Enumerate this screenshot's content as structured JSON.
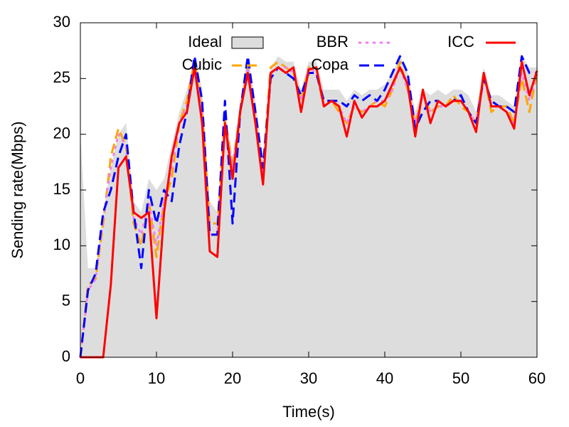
{
  "chart_data": {
    "type": "line",
    "xlabel": "Time(s)",
    "ylabel": "Sending rate(Mbps)",
    "xlim": [
      0,
      60
    ],
    "ylim": [
      0,
      30
    ],
    "xticks": [
      0,
      10,
      20,
      30,
      40,
      50,
      60
    ],
    "yticks": [
      0,
      5,
      10,
      15,
      20,
      25,
      30
    ],
    "x": [
      0,
      1,
      2,
      3,
      4,
      5,
      6,
      7,
      8,
      9,
      10,
      11,
      12,
      13,
      14,
      15,
      16,
      17,
      18,
      19,
      20,
      21,
      22,
      23,
      24,
      25,
      26,
      27,
      28,
      29,
      30,
      31,
      32,
      33,
      34,
      35,
      36,
      37,
      38,
      39,
      40,
      41,
      42,
      43,
      44,
      45,
      46,
      47,
      48,
      49,
      50,
      51,
      52,
      53,
      54,
      55,
      56,
      57,
      58,
      59,
      60
    ],
    "series": [
      {
        "name": "Ideal",
        "color": "#dddddd",
        "style": "area",
        "values": [
          20,
          8,
          8,
          13,
          17,
          20,
          21,
          14,
          13,
          16,
          15,
          16,
          19,
          22,
          24,
          27,
          24,
          14,
          13,
          22,
          18,
          23,
          27,
          23,
          18,
          26,
          27,
          26.5,
          26.5,
          24,
          26.5,
          26.5,
          24,
          24,
          24,
          23,
          24,
          23.5,
          24,
          24,
          24.5,
          25.5,
          27,
          25.5,
          22,
          24,
          23.5,
          24,
          23.5,
          24,
          24,
          23.5,
          22,
          26,
          23.5,
          23.5,
          23,
          22.5,
          27,
          26,
          26
        ]
      },
      {
        "name": "Cubic",
        "color": "#ffa500",
        "style": "dashed",
        "values": [
          0,
          6.5,
          7,
          12,
          18,
          20.5,
          19,
          12,
          10,
          14,
          9,
          14,
          16,
          21,
          23,
          26.5,
          22,
          12,
          12,
          21.5,
          17,
          22,
          26,
          21,
          17,
          26,
          26.5,
          26,
          25.5,
          23,
          26,
          25.5,
          22.5,
          23,
          22,
          21,
          22.5,
          22,
          22.5,
          23,
          22.5,
          24,
          26.5,
          24,
          21,
          23.5,
          22,
          22.5,
          22.5,
          23.5,
          22.5,
          22,
          21,
          25.5,
          22,
          22.5,
          22.5,
          21,
          25,
          22,
          25.5
        ]
      },
      {
        "name": "BBR",
        "color": "#ee82ee",
        "style": "dotted",
        "values": [
          0,
          6,
          7,
          12.5,
          17,
          20,
          19,
          12.5,
          11,
          14,
          10,
          14,
          17,
          21,
          22.5,
          26,
          22,
          11,
          11,
          21,
          17,
          22,
          26,
          21.5,
          16.5,
          25.5,
          26,
          26,
          25.5,
          23,
          26,
          25.5,
          22.5,
          23,
          22.5,
          21,
          22.5,
          22,
          22.5,
          23,
          23,
          24,
          26,
          24,
          21,
          23.5,
          22,
          22.5,
          22.5,
          23,
          23,
          22,
          21,
          25.5,
          22.5,
          22.5,
          22,
          21,
          25.5,
          23,
          25.5
        ]
      },
      {
        "name": "Copa",
        "color": "#0000ff",
        "style": "dashed",
        "values": [
          0,
          6,
          7.5,
          13,
          15,
          18,
          20,
          13,
          8,
          15,
          12,
          15,
          14,
          19,
          22,
          27,
          23,
          11,
          11,
          23,
          12,
          22,
          27,
          22,
          17,
          25,
          26,
          25.5,
          25,
          23.5,
          25.5,
          25.5,
          23,
          23,
          23,
          22.5,
          23.5,
          23,
          23.5,
          23,
          24,
          25.5,
          27,
          25.5,
          20.5,
          22,
          23,
          23,
          22.5,
          23,
          23.5,
          22,
          21,
          25,
          23,
          22.5,
          22.5,
          22,
          27,
          25.5,
          25.5
        ]
      },
      {
        "name": "ICC",
        "color": "#ff0000",
        "style": "solid",
        "values": [
          0,
          0,
          0,
          0,
          6.5,
          17,
          18,
          13,
          12.5,
          13,
          3.5,
          13,
          18,
          21,
          22,
          26,
          21,
          9.5,
          9,
          21,
          16,
          22,
          25.5,
          21,
          15.5,
          25.5,
          26,
          25.5,
          26,
          22,
          25.8,
          26,
          22.5,
          23,
          22.5,
          19.8,
          23,
          21.5,
          22.5,
          22.5,
          23,
          24.5,
          26,
          24.5,
          19.8,
          24,
          21,
          23,
          22.5,
          23,
          23,
          22,
          20.2,
          25.5,
          22.5,
          22.5,
          22,
          20.5,
          26.5,
          23.5,
          25.7
        ]
      }
    ]
  }
}
